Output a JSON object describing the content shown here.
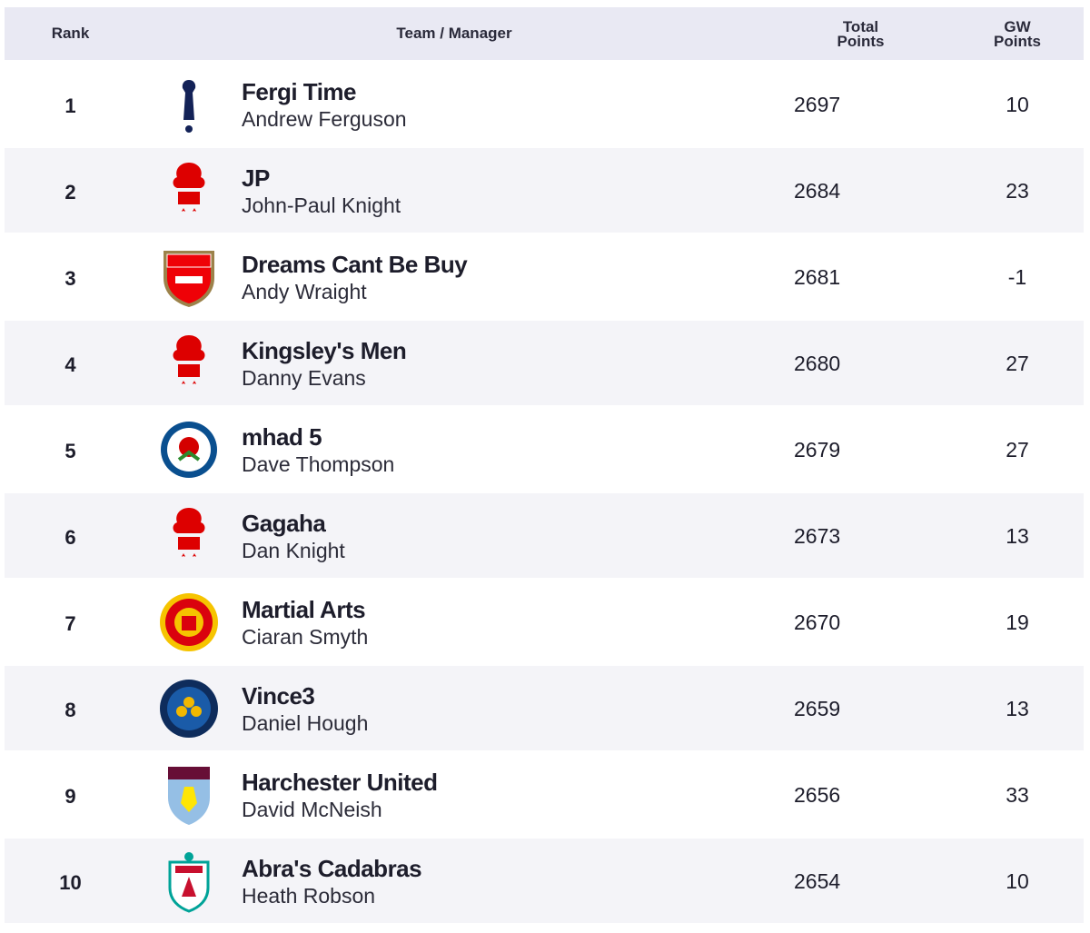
{
  "table": {
    "columns": [
      "Rank",
      "Team / Manager",
      "Total Points",
      "GW Points"
    ],
    "rows": [
      {
        "rank": 1,
        "team": "Fergi Time",
        "manager": "Andrew Ferguson",
        "total": 2697,
        "gw": 10
      },
      {
        "rank": 2,
        "team": "JP",
        "manager": "John-Paul Knight",
        "total": 2684,
        "gw": 23
      },
      {
        "rank": 3,
        "team": "Dreams Cant Be Buy",
        "manager": "Andy Wraight",
        "total": 2681,
        "gw": -1
      },
      {
        "rank": 4,
        "team": "Kingsley's Men",
        "manager": "Danny Evans",
        "total": 2680,
        "gw": 27
      },
      {
        "rank": 5,
        "team": "mhad 5",
        "manager": "Dave Thompson",
        "total": 2679,
        "gw": 27
      },
      {
        "rank": 6,
        "team": "Gagaha",
        "manager": "Dan Knight",
        "total": 2673,
        "gw": 13
      },
      {
        "rank": 7,
        "team": "Martial Arts",
        "manager": "Ciaran Smyth",
        "total": 2670,
        "gw": 19
      },
      {
        "rank": 8,
        "team": "Vince3",
        "manager": "Daniel Hough",
        "total": 2659,
        "gw": 13
      },
      {
        "rank": 9,
        "team": "Harchester United",
        "manager": "David McNeish",
        "total": 2656,
        "gw": 33
      },
      {
        "rank": 10,
        "team": "Abra's Cadabras",
        "manager": "Heath Robson",
        "total": 2654,
        "gw": 10
      }
    ]
  }
}
